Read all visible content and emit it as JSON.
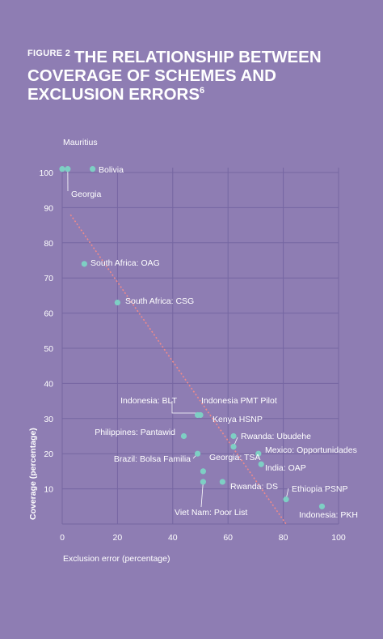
{
  "figure": {
    "label": "FIGURE 2",
    "title": "THE RELATIONSHIP BETWEEN COVERAGE OF SCHEMES AND EXCLUSION ERRORS",
    "footnote": "6"
  },
  "colors": {
    "background": "#8e7db3",
    "point": "#7ecfc4",
    "trend": "#f08a8a",
    "grid": "#7566a2",
    "text": "#ffffff"
  },
  "chart_data": {
    "type": "scatter",
    "title": "THE RELATIONSHIP BETWEEN COVERAGE OF SCHEMES AND EXCLUSION ERRORS",
    "xlabel": "Exclusion error (percentage)",
    "ylabel": "Coverage (percentage)",
    "xlim": [
      0,
      100
    ],
    "ylim": [
      0,
      100
    ],
    "xticks": [
      0,
      20,
      40,
      60,
      80,
      100
    ],
    "yticks": [
      10,
      20,
      30,
      40,
      50,
      60,
      70,
      80,
      90,
      100
    ],
    "grid": true,
    "trendline": {
      "x": [
        3,
        81
      ],
      "y": [
        88,
        0
      ]
    },
    "points": [
      {
        "label": "Mauritius",
        "x": 0,
        "y": 101
      },
      {
        "label": "Georgia",
        "x": 2,
        "y": 101
      },
      {
        "label": "Bolivia",
        "x": 11,
        "y": 101
      },
      {
        "label": "South Africa: OAG",
        "x": 8,
        "y": 74
      },
      {
        "label": "South Africa: CSG",
        "x": 20,
        "y": 63
      },
      {
        "label": "Indonesia: BLT",
        "x": 49,
        "y": 31
      },
      {
        "label": "Indonesia PMT Pilot",
        "x": 50,
        "y": 31
      },
      {
        "label": "Kenya HSNP",
        "x": 62,
        "y": 25
      },
      {
        "label": "Philippines: Pantawid",
        "x": 44,
        "y": 25
      },
      {
        "label": "Rwanda: Ubudehe",
        "x": 62,
        "y": 22
      },
      {
        "label": "Brazil: Bolsa Familia",
        "x": 49,
        "y": 20
      },
      {
        "label": "Mexico: Opportunidades",
        "x": 71,
        "y": 20
      },
      {
        "label": "Georgia: TSA",
        "x": 51,
        "y": 15
      },
      {
        "label": "India: OAP",
        "x": 72,
        "y": 17
      },
      {
        "label": "Viet Nam: Poor List",
        "x": 51,
        "y": 12
      },
      {
        "label": "Rwanda: DS",
        "x": 58,
        "y": 12
      },
      {
        "label": "Ethiopia PSNP",
        "x": 81,
        "y": 7
      },
      {
        "label": "Indonesia: PKH",
        "x": 94,
        "y": 5
      }
    ]
  }
}
